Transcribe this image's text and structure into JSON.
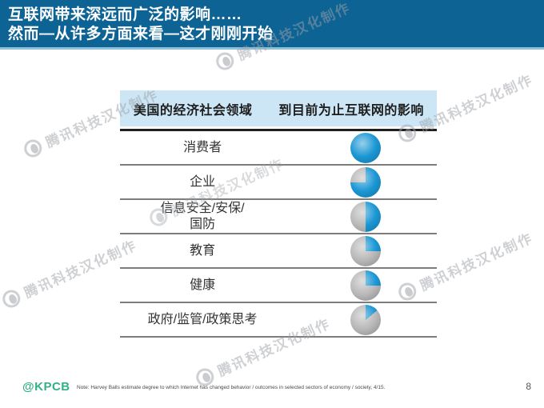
{
  "header": {
    "title_line1": "互联网带来深远而广泛的影响……",
    "title_line2": "然而—从许多方面来看—这才刚刚开始"
  },
  "table": {
    "col1_header": "美国的经济社会领域",
    "col2_header": "到目前为止互联网的影响",
    "rows": [
      {
        "label": "消费者",
        "fraction": 1
      },
      {
        "label": "企业",
        "fraction": 0.75
      },
      {
        "label": "信息安全/安保/\n国防",
        "fraction": 0.5
      },
      {
        "label": "教育",
        "fraction": 0.25
      },
      {
        "label": "健康",
        "fraction": 0.25
      },
      {
        "label": "政府/监管/政策思考",
        "fraction": 0.14
      }
    ]
  },
  "footer": {
    "logo": "@KPCB",
    "note": "Note: Harvey Balls estimate degree to which Internet has changed behavior / outcomes in selected sectors of economy / society, 4/15.",
    "page": "8"
  },
  "watermark": {
    "text": "腾讯科技汉化制作"
  },
  "colors": {
    "banner_blue": "#0e6395",
    "banner_border": "#8fc0da",
    "table_head_bg": "#cce6f6",
    "harvey_blue": "#1b97d4",
    "harvey_gray": "#b9b9b9",
    "kpcb_green": "#33b184"
  },
  "chart_data": {
    "type": "table",
    "title": "互联网带来深远而广泛的影响…… 然而—从许多方面来看—这才刚刚开始",
    "columns": [
      "美国的经济社会领域",
      "到目前为止互联网的影响"
    ],
    "categories": [
      "消费者",
      "企业",
      "信息安全/安保/国防",
      "教育",
      "健康",
      "政府/监管/政策思考"
    ],
    "values": [
      1.0,
      0.75,
      0.5,
      0.25,
      0.25,
      0.14
    ],
    "value_encoding": "Harvey ball fill fraction (0-1), blue = degree Internet has changed sector",
    "legend_position": "none",
    "grid": "horizontal row dividers"
  }
}
